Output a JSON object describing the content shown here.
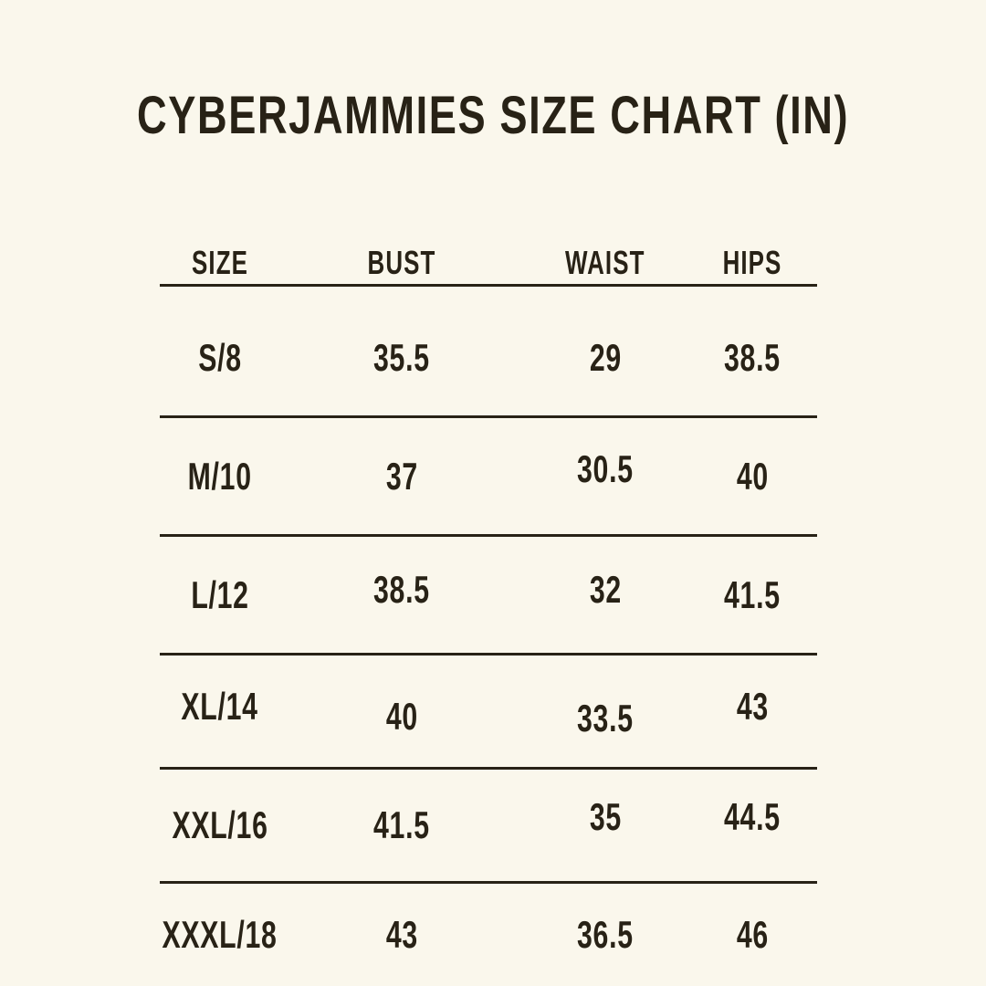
{
  "page": {
    "background_color": "#FAF7EC",
    "text_color": "#282216",
    "rule_color": "#282216"
  },
  "chart_data": {
    "type": "table",
    "title": "CYBERJAMMIES SIZE CHART (IN)",
    "columns": [
      "SIZE",
      "BUST",
      "WAIST",
      "HIPS"
    ],
    "rows": [
      [
        "S/8",
        "35.5",
        "29",
        "38.5"
      ],
      [
        "M/10",
        "37",
        "30.5",
        "40"
      ],
      [
        "L/12",
        "38.5",
        "32",
        "41.5"
      ],
      [
        "XL/14",
        "40",
        "33.5",
        "43"
      ],
      [
        "XXL/16",
        "41.5",
        "35",
        "44.5"
      ],
      [
        "XXXL/18",
        "43",
        "36.5",
        "46"
      ]
    ]
  }
}
